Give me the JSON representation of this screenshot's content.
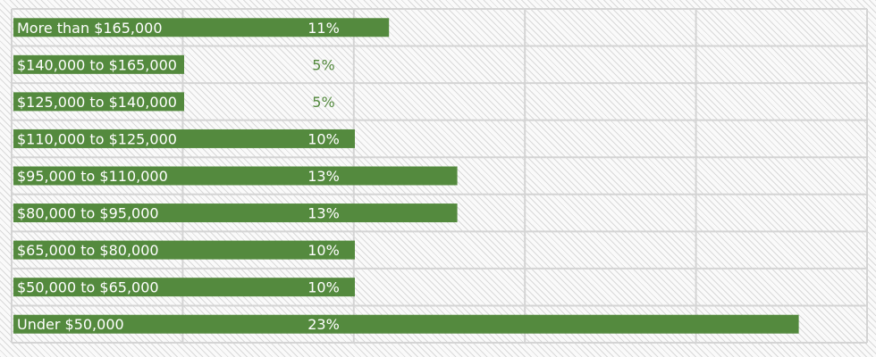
{
  "chart_data": {
    "type": "bar",
    "orientation": "horizontal",
    "categories": [
      "More than $165,000",
      "$140,000 to $165,000",
      "$125,000 to $140,000",
      "$110,000 to $125,000",
      "$95,000 to $110,000",
      "$80,000 to $95,000",
      "$65,000 to $80,000",
      "$50,000 to $65,000",
      "Under $50,000"
    ],
    "values": [
      11,
      5,
      5,
      10,
      13,
      13,
      10,
      10,
      23
    ],
    "value_labels": [
      "11%",
      "5%",
      "5%",
      "10%",
      "13%",
      "13%",
      "10%",
      "10%",
      "23%"
    ],
    "xlim": [
      0,
      25
    ],
    "grid": true,
    "bar_color": "#548a3e",
    "label_color_on_bar": "#ffffff",
    "label_color_off_bar": "#548a3e",
    "background_pattern": "diagonal-hatch"
  }
}
